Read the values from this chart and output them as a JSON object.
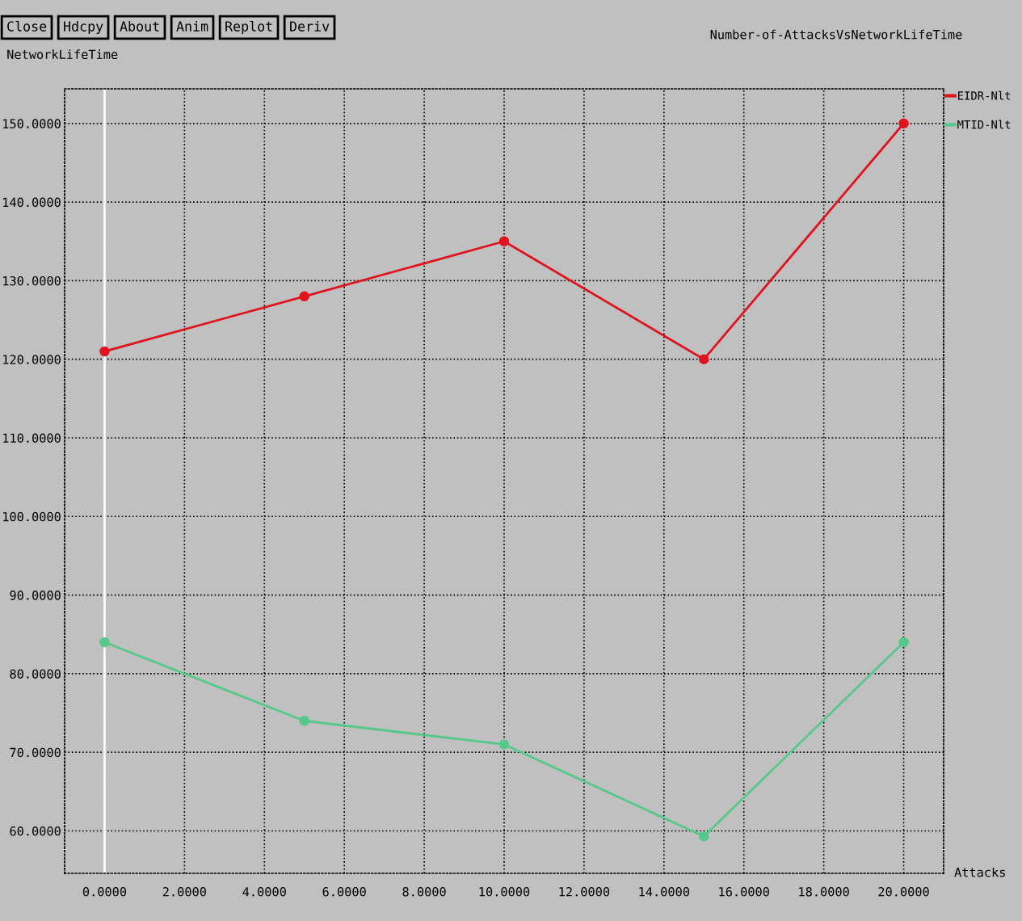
{
  "chart_data": {
    "type": "line",
    "title": "Number-of-AttacksVsNetworkLifeTime",
    "xlabel": "Attacks",
    "ylabel": "NetworkLifeTime",
    "annotations": [
      "Close",
      "Hdcpy",
      "About",
      "Anim",
      "Replot",
      "Deriv"
    ],
    "x": [
      0,
      5,
      10,
      15,
      20
    ],
    "series": [
      {
        "name": "EIDR-Nlt",
        "color": "#e0141e",
        "values": [
          121,
          128,
          135,
          120,
          150
        ]
      },
      {
        "name": "MTID-Nlt",
        "color": "#55c98a",
        "values": [
          84,
          74,
          71,
          59.3,
          84
        ]
      }
    ],
    "xlim": [
      -1,
      21
    ],
    "xticks": [
      {
        "value": 0,
        "label": "0.0000"
      },
      {
        "value": 2,
        "label": "2.0000"
      },
      {
        "value": 4,
        "label": "4.0000"
      },
      {
        "value": 6,
        "label": "6.0000"
      },
      {
        "value": 8,
        "label": "8.0000"
      },
      {
        "value": 10,
        "label": "10.0000"
      },
      {
        "value": 12,
        "label": "12.0000"
      },
      {
        "value": 14,
        "label": "14.0000"
      },
      {
        "value": 16,
        "label": "16.0000"
      },
      {
        "value": 18,
        "label": "18.0000"
      },
      {
        "value": 20,
        "label": "20.0000"
      }
    ],
    "ylim": [
      54.6,
      154.4
    ],
    "yticks": [
      {
        "value": 60,
        "label": "60.0000"
      },
      {
        "value": 70,
        "label": "70.0000"
      },
      {
        "value": 80,
        "label": "80.0000"
      },
      {
        "value": 90,
        "label": "90.0000"
      },
      {
        "value": 100,
        "label": "100.0000"
      },
      {
        "value": 110,
        "label": "110.0000"
      },
      {
        "value": 120,
        "label": "120.0000"
      },
      {
        "value": 130,
        "label": "130.0000"
      },
      {
        "value": 140,
        "label": "140.0000"
      },
      {
        "value": 150,
        "label": "150.0000"
      }
    ],
    "ref_lines": [
      {
        "axis": "x",
        "value": 0,
        "color": "#ffffff"
      }
    ],
    "grid": true,
    "legend": "top right",
    "marker": "circle",
    "line_style": "solid"
  }
}
